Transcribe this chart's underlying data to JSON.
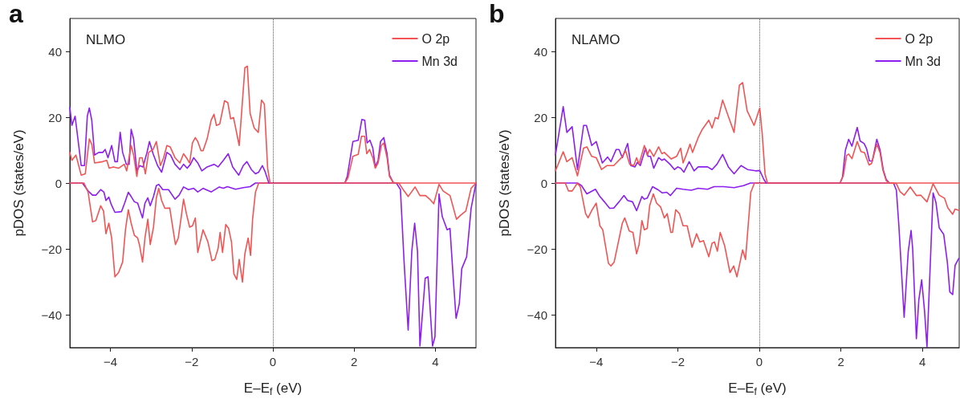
{
  "chart_data": [
    {
      "type": "line",
      "title": "a",
      "annotations": [
        "NLMO"
      ],
      "xlabel": "E–E$_{f}$ (eV)",
      "ylabel": "pDOS (states/eV)",
      "xlim": [
        -5,
        5
      ],
      "xticks": [
        -4,
        -2,
        0,
        2,
        4
      ],
      "ylim": [
        -50,
        50
      ],
      "yticks": [
        -40,
        -20,
        0,
        20,
        40
      ],
      "grid": false,
      "legend": "top right",
      "marker": "none",
      "line_style": "solid",
      "ref_lines": [
        {
          "axis": "x",
          "value": 0,
          "color": "#555555",
          "line_style": "dotted"
        }
      ],
      "series": [
        {
          "name": "O 2p",
          "color": "#f05454",
          "x": [
            -5,
            -4.95,
            -4.85,
            -4.72,
            -4.62,
            -4.52,
            -4.46,
            -4.39,
            -4.19,
            -4.09,
            -4.03,
            -3.93,
            -3.8,
            -3.66,
            -3.6,
            -3.49,
            -3.43,
            -3.35,
            -3.28,
            -3.22,
            -3.14,
            -3.06,
            -2.95,
            -2.87,
            -2.77,
            -2.69,
            -2.61,
            -2.53,
            -2.41,
            -2.29,
            -2.2,
            -2.11,
            -2.05,
            -1.98,
            -1.91,
            -1.85,
            -1.77,
            -1.72,
            -1.62,
            -1.52,
            -1.45,
            -1.39,
            -1.31,
            -1.19,
            -1.11,
            -1.04,
            -0.97,
            -0.83,
            -0.69,
            -0.63,
            -0.56,
            -0.46,
            -0.36,
            -0.28,
            -0.21,
            -0.13,
            -0.07,
            1.77,
            1.85,
            1.97,
            2.1,
            2.18,
            2.26,
            2.31,
            2.38,
            2.46,
            2.52,
            2.59,
            2.67,
            2.73,
            2.81,
            2.87,
            2.96,
            3.02,
            5
          ],
          "values": [
            9.3,
            6.9,
            8.5,
            2.4,
            2.8,
            13.4,
            11.8,
            6.1,
            6.5,
            6.9,
            4.5,
            4.9,
            4.5,
            5.7,
            3.7,
            11.4,
            8.5,
            2.0,
            7.7,
            7.7,
            2.8,
            9.3,
            10.2,
            12.6,
            5.3,
            7.7,
            11.4,
            11.0,
            7.7,
            6.1,
            8.9,
            7.3,
            6.1,
            12.2,
            13.8,
            12.6,
            9.8,
            9.8,
            13.4,
            19.1,
            20.9,
            17.5,
            17.9,
            25.0,
            24.4,
            19.5,
            19.9,
            11.4,
            35.0,
            35.5,
            21.1,
            16.7,
            15.4,
            25.2,
            24.0,
            4.5,
            0,
            0,
            1.6,
            8.1,
            8.7,
            14.2,
            14.2,
            8.9,
            10.2,
            7.7,
            4.5,
            6.1,
            11.4,
            12.2,
            7.7,
            2.0,
            0.2,
            0,
            0
          ]
        },
        {
          "name": "Mn 3d",
          "color": "#8c1ff0",
          "x": [
            -5,
            -4.95,
            -4.87,
            -4.72,
            -4.64,
            -4.57,
            -4.52,
            -4.46,
            -4.39,
            -4.29,
            -4.19,
            -4.13,
            -4.06,
            -3.97,
            -3.89,
            -3.83,
            -3.76,
            -3.7,
            -3.61,
            -3.54,
            -3.49,
            -3.43,
            -3.35,
            -3.28,
            -3.2,
            -3.1,
            -3.04,
            -2.95,
            -2.84,
            -2.74,
            -2.61,
            -2.52,
            -2.41,
            -2.29,
            -2.2,
            -2.11,
            -2.03,
            -1.95,
            -1.85,
            -1.75,
            -1.62,
            -1.45,
            -1.35,
            -1.22,
            -1.1,
            -0.99,
            -0.84,
            -0.73,
            -0.64,
            -0.53,
            -0.43,
            -0.35,
            -0.26,
            -0.2,
            -0.1,
            1.77,
            1.83,
            1.97,
            2.1,
            2.19,
            2.26,
            2.32,
            2.39,
            2.46,
            2.52,
            2.59,
            2.65,
            2.73,
            2.81,
            2.87,
            2.96,
            3.04
          ],
          "values": [
            23,
            17.5,
            20.3,
            5.3,
            5.3,
            20.3,
            22.8,
            19.1,
            8.5,
            9.3,
            9.3,
            10.2,
            7.7,
            11.4,
            6.5,
            6.5,
            15.4,
            9.3,
            5.7,
            5.7,
            16.3,
            13.4,
            3.7,
            5.3,
            4.9,
            9.3,
            12.6,
            8.9,
            5.3,
            3.3,
            9.3,
            8.5,
            5.7,
            4.1,
            5.7,
            4.5,
            5.7,
            7.7,
            6.1,
            3.7,
            4.9,
            5.7,
            4.9,
            6.9,
            8.9,
            4.9,
            2.4,
            5.3,
            6.5,
            4.1,
            2.8,
            3.3,
            5.3,
            3.7,
            0,
            0,
            2.0,
            12.6,
            13.0,
            19.3,
            19.1,
            12.2,
            13.0,
            10.6,
            4.9,
            6.9,
            12.6,
            13.8,
            8.9,
            2.4,
            0.2,
            0
          ]
        },
        {
          "color": "#f05454",
          "x": [
            -5,
            -4.65,
            -4.55,
            -4.44,
            -4.36,
            -4.24,
            -4.17,
            -4.11,
            -4.04,
            -3.97,
            -3.89,
            -3.8,
            -3.7,
            -3.63,
            -3.56,
            -3.49,
            -3.41,
            -3.33,
            -3.28,
            -3.21,
            -3.15,
            -3.08,
            -3.02,
            -2.94,
            -2.87,
            -2.81,
            -2.74,
            -2.66,
            -2.54,
            -2.4,
            -2.33,
            -2.26,
            -2.2,
            -2.13,
            -2.05,
            -1.98,
            -1.91,
            -1.85,
            -1.72,
            -1.6,
            -1.5,
            -1.43,
            -1.35,
            -1.3,
            -1.24,
            -1.16,
            -1.09,
            -1.02,
            -0.96,
            -0.89,
            -0.83,
            -0.75,
            -0.69,
            -0.61,
            -0.55,
            -0.5,
            -0.43,
            -0.35,
            3.1,
            3.23,
            3.33,
            3.5,
            3.62,
            3.76,
            3.86,
            3.96,
            4.09,
            4.19,
            4.36,
            4.52,
            4.62,
            4.75,
            4.88,
            5
          ],
          "values": [
            0,
            0,
            -2.8,
            -11.8,
            -11.4,
            -6.9,
            -8.5,
            -15.4,
            -12.2,
            -16.7,
            -28.5,
            -27.2,
            -24.0,
            -14.2,
            -8.1,
            -12.2,
            -15.9,
            -16.7,
            -19.1,
            -24.0,
            -16.7,
            -11.0,
            -18.7,
            -13.4,
            -4.5,
            -1.6,
            -5.3,
            -7.7,
            -7.6,
            -18.7,
            -16.7,
            -10.6,
            -4.9,
            -9.3,
            -13.4,
            -13.0,
            -10.6,
            -21.1,
            -14.2,
            -17.9,
            -23.6,
            -23.2,
            -19.9,
            -15.0,
            -21.1,
            -12.6,
            -13.8,
            -17.9,
            -27.6,
            -29.3,
            -23.2,
            -30.1,
            -21.5,
            -16.7,
            -22.0,
            -11.0,
            -2.8,
            0,
            0,
            -2.4,
            -4.1,
            -1.2,
            -3.8,
            -3.8,
            -4.9,
            -6.3,
            -0.4,
            -2.4,
            -3.8,
            -11.0,
            -9.8,
            -8.5,
            -1.6,
            0
          ]
        },
        {
          "color": "#8c1ff0",
          "x": [
            -5,
            -4.69,
            -4.55,
            -4.44,
            -4.36,
            -4.24,
            -4.16,
            -4.11,
            -4.04,
            -3.98,
            -3.89,
            -3.73,
            -3.65,
            -3.56,
            -3.49,
            -3.41,
            -3.33,
            -3.21,
            -3.15,
            -3.08,
            -3.02,
            -2.94,
            -2.87,
            -2.81,
            -2.71,
            -2.57,
            -2.41,
            -2.31,
            -2.2,
            -2.08,
            -1.95,
            -1.85,
            -1.72,
            -1.52,
            -1.32,
            -1.22,
            -1.12,
            -0.92,
            -0.73,
            -0.56,
            -0.43,
            3.04,
            3.14,
            3.23,
            3.33,
            3.42,
            3.49,
            3.56,
            3.62,
            3.75,
            3.82,
            3.93,
            3.99,
            4.09,
            4.17,
            4.29,
            4.36,
            4.44,
            4.51,
            4.59,
            4.65,
            4.77,
            4.88,
            5
          ],
          "values": [
            0,
            0,
            -2.4,
            -3.7,
            -3.7,
            -2.0,
            -2.8,
            -5.3,
            -4.3,
            -6.5,
            -8.9,
            -8.7,
            -6.1,
            -2.8,
            -4.1,
            -5.7,
            -6.1,
            -10.6,
            -6.1,
            -4.5,
            -6.9,
            -4.1,
            -0.8,
            -0.4,
            -2.0,
            -2.0,
            -4.9,
            -3.7,
            -1.2,
            -2.0,
            -1.6,
            -2.7,
            -1.6,
            -2.7,
            -1.2,
            -1.6,
            -1.1,
            -1.9,
            -1.4,
            -1.1,
            0,
            0,
            -2.0,
            -24.0,
            -44.7,
            -20.7,
            -12.2,
            -20.7,
            -49.5,
            -28.9,
            -28.5,
            -49.5,
            -46.7,
            -3.3,
            -10.2,
            -14.2,
            -13.8,
            -28.9,
            -41.1,
            -36.6,
            -26.0,
            -22.4,
            -7.7,
            0
          ]
        }
      ]
    },
    {
      "type": "line",
      "title": "b",
      "annotations": [
        "NLAMO"
      ],
      "xlabel": "E–E$_{f}$ (eV)",
      "ylabel": "pDOS (states/eV)",
      "xlim": [
        -5,
        4.9
      ],
      "xticks": [
        -4,
        -2,
        0,
        2,
        4
      ],
      "ylim": [
        -50,
        50
      ],
      "yticks": [
        -40,
        -20,
        0,
        20,
        40
      ],
      "grid": false,
      "legend": "top right",
      "marker": "none",
      "line_style": "solid",
      "ref_lines": [
        {
          "axis": "x",
          "value": 0,
          "color": "#555555",
          "line_style": "dotted"
        }
      ],
      "series": [
        {
          "name": "O 2p",
          "color": "#f05454",
          "x": [
            -5,
            -4.81,
            -4.72,
            -4.59,
            -4.46,
            -4.31,
            -4.23,
            -4.11,
            -4.0,
            -3.87,
            -3.74,
            -3.57,
            -3.38,
            -3.28,
            -3.18,
            -3.08,
            -3.01,
            -2.95,
            -2.82,
            -2.75,
            -2.69,
            -2.59,
            -2.47,
            -2.39,
            -2.33,
            -2.16,
            -2.03,
            -1.93,
            -1.87,
            -1.77,
            -1.7,
            -1.64,
            -1.5,
            -1.4,
            -1.24,
            -1.16,
            -1.08,
            -1.01,
            -0.9,
            -0.75,
            -0.62,
            -0.49,
            -0.41,
            -0.3,
            -0.13,
            0.01,
            0.07,
            0.14,
            0.2,
            1.98,
            2.06,
            2.14,
            2.19,
            2.27,
            2.4,
            2.49,
            2.58,
            2.69,
            2.75,
            2.88,
            2.96,
            3.03,
            3.11,
            3.19,
            4.9
          ],
          "values": [
            3.7,
            9.5,
            6.5,
            7.7,
            2.2,
            10.6,
            11.0,
            8.1,
            7.7,
            4.1,
            5.3,
            5.3,
            7.7,
            9.8,
            5.7,
            5.3,
            7.7,
            5.7,
            11.4,
            8.5,
            10.2,
            8.1,
            11.0,
            8.9,
            9.3,
            7.3,
            8.1,
            10.6,
            6.1,
            9.3,
            11.8,
            9.3,
            13.8,
            16.3,
            19.1,
            16.7,
            19.9,
            19.5,
            25.2,
            19.9,
            15.4,
            29.7,
            30.5,
            22.0,
            17.5,
            22.8,
            14.9,
            2.7,
            0,
            0,
            2.3,
            8.4,
            8.8,
            7.4,
            12.6,
            9.6,
            9.2,
            5.5,
            5.9,
            11.8,
            9.2,
            3.9,
            0.7,
            0,
            0
          ]
        },
        {
          "name": "Mn 3d",
          "color": "#8c1ff0",
          "x": [
            -5,
            -4.81,
            -4.72,
            -4.59,
            -4.46,
            -4.31,
            -4.24,
            -4.11,
            -4.0,
            -3.85,
            -3.72,
            -3.64,
            -3.51,
            -3.44,
            -3.36,
            -3.23,
            -3.15,
            -3.05,
            -2.99,
            -2.92,
            -2.79,
            -2.73,
            -2.67,
            -2.59,
            -2.47,
            -2.39,
            -2.33,
            -2.19,
            -2.08,
            -2.0,
            -1.93,
            -1.85,
            -1.72,
            -1.6,
            -1.5,
            -1.27,
            -1.16,
            -1.04,
            -0.9,
            -0.76,
            -0.62,
            -0.45,
            -0.29,
            -0.09,
            0.01,
            0.11,
            0.17,
            1.98,
            2.04,
            2.11,
            2.19,
            2.27,
            2.4,
            2.47,
            2.57,
            2.63,
            2.7,
            2.77,
            2.88,
            2.96,
            3.04,
            3.11,
            3.19
          ],
          "values": [
            8.5,
            23.2,
            15.4,
            17.1,
            4.1,
            17.5,
            17.5,
            11.4,
            12.6,
            6.1,
            7.9,
            6.5,
            10.2,
            10.2,
            7.7,
            12.0,
            5.3,
            4.9,
            6.3,
            5.3,
            10.6,
            8.1,
            8.1,
            4.5,
            7.7,
            6.9,
            7.3,
            5.7,
            4.1,
            4.9,
            4.5,
            3.3,
            6.5,
            3.7,
            4.9,
            4.9,
            4.1,
            5.7,
            8.7,
            4.9,
            2.8,
            5.3,
            4.1,
            3.7,
            3.8,
            1.1,
            0,
            0,
            1.9,
            10.0,
            13.3,
            11.2,
            16.9,
            12.8,
            12.0,
            10.4,
            6.7,
            6.7,
            13.3,
            10.0,
            3.9,
            1.1,
            0
          ]
        },
        {
          "color": "#f05454",
          "x": [
            -5,
            -4.76,
            -4.68,
            -4.59,
            -4.46,
            -4.39,
            -4.26,
            -4.2,
            -4.1,
            -4.0,
            -3.91,
            -3.84,
            -3.7,
            -3.64,
            -3.56,
            -3.36,
            -3.3,
            -3.19,
            -3.1,
            -3.01,
            -2.95,
            -2.88,
            -2.82,
            -2.75,
            -2.69,
            -2.6,
            -2.52,
            -2.42,
            -2.33,
            -2.26,
            -2.17,
            -2.13,
            -2.05,
            -1.96,
            -1.87,
            -1.77,
            -1.65,
            -1.54,
            -1.46,
            -1.37,
            -1.24,
            -1.16,
            -1.1,
            -1.03,
            -0.96,
            -0.85,
            -0.72,
            -0.63,
            -0.55,
            -0.41,
            -0.34,
            -0.21,
            -0.12,
            3.26,
            3.36,
            3.45,
            3.55,
            3.7,
            3.85,
            3.96,
            4.11,
            4.26,
            4.41,
            4.54,
            4.62,
            4.74,
            4.8,
            4.89
          ],
          "values": [
            0,
            0,
            -2.4,
            -2.4,
            0,
            -1.2,
            -9.3,
            -10.6,
            -8.1,
            -6.1,
            -13.0,
            -14.2,
            -24.4,
            -25.2,
            -24.0,
            -12.2,
            -10.6,
            -14.6,
            -15.0,
            -21.5,
            -18.7,
            -11.4,
            -14.2,
            -13.8,
            -6.9,
            -3.3,
            -6.1,
            -7.3,
            -10.6,
            -9.3,
            -15.0,
            -15.0,
            -8.1,
            -9.3,
            -13.0,
            -13.0,
            -19.5,
            -15.4,
            -17.9,
            -17.5,
            -22.4,
            -18.3,
            -17.9,
            -20.7,
            -15.0,
            -19.1,
            -27.2,
            -25.2,
            -28.5,
            -20.3,
            -23.2,
            -2.8,
            0,
            0,
            -0.2,
            -2.6,
            -3.7,
            -1.2,
            -3.8,
            -3.7,
            -5.7,
            -0.2,
            -3.7,
            -4.6,
            -7.5,
            -9.5,
            -7.9,
            -8.3
          ]
        },
        {
          "color": "#8c1ff0",
          "x": [
            -5,
            -4.46,
            -4.36,
            -4.23,
            -4.02,
            -3.91,
            -3.8,
            -3.67,
            -3.57,
            -3.44,
            -3.32,
            -3.23,
            -3.11,
            -3.01,
            -2.88,
            -2.82,
            -2.75,
            -2.62,
            -2.49,
            -2.38,
            -2.27,
            -2.18,
            -2.03,
            -1.87,
            -1.67,
            -1.5,
            -1.27,
            -1.11,
            -0.88,
            -0.62,
            -0.39,
            -0.22,
            3.29,
            3.36,
            3.42,
            3.55,
            3.65,
            3.72,
            3.76,
            3.85,
            3.91,
            3.98,
            4.05,
            4.11,
            4.26,
            4.33,
            4.41,
            4.52,
            4.61,
            4.67,
            4.74,
            4.8,
            4.89
          ],
          "values": [
            0,
            0,
            -0.8,
            -3.3,
            -1.9,
            -4.1,
            -5.7,
            -7.7,
            -7.6,
            -5.7,
            -3.8,
            -5.3,
            -5.7,
            -8.4,
            -4.1,
            -4.9,
            -4.6,
            -1.1,
            -2.0,
            -3.0,
            -2.8,
            -3.8,
            -1.6,
            -1.9,
            -2.2,
            -1.6,
            -1.9,
            -1.1,
            -1.1,
            -1.4,
            -0.8,
            0,
            0,
            -2.2,
            -12.8,
            -40.8,
            -20.9,
            -14.4,
            -20.1,
            -47.3,
            -35.5,
            -29.4,
            -38.8,
            -49.8,
            -3.0,
            -5.9,
            -13.6,
            -15.6,
            -24.1,
            -33.1,
            -33.9,
            -25.0,
            -22.9
          ]
        }
      ]
    }
  ]
}
